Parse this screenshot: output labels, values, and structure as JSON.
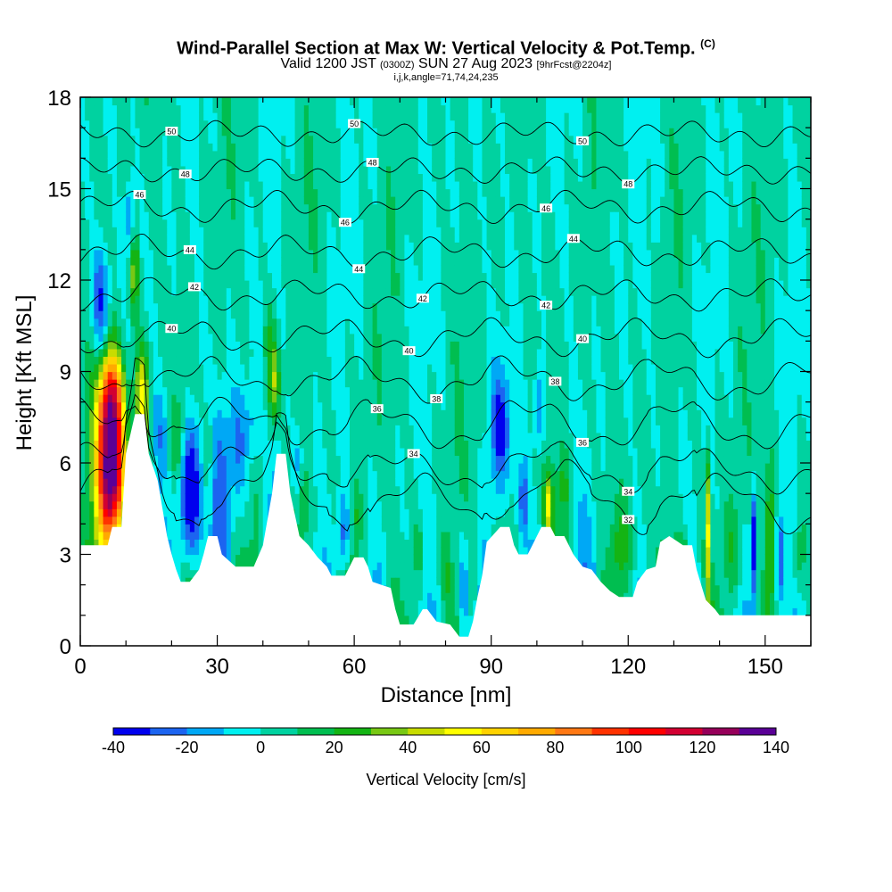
{
  "title": {
    "main": "Wind-Parallel Section at Max W: Vertical Velocity & Pot.Temp.",
    "copyright": "(C)",
    "valid_prefix": "Valid 1200 JST",
    "valid_utc": "(0300Z)",
    "valid_date": "SUN 27 Aug 2023",
    "forecast": "[9hrFcst@2204z]",
    "indices": "i,j,k,angle=71,74,24,235"
  },
  "chart_data": {
    "type": "heatmap",
    "xlabel": "Distance [nm]",
    "ylabel": "Height [Kft MSL]",
    "xlim": [
      0,
      160
    ],
    "ylim": [
      0,
      18
    ],
    "x_ticks": [
      0,
      30,
      60,
      90,
      120,
      150
    ],
    "y_ticks": [
      0,
      3,
      6,
      9,
      12,
      15,
      18
    ],
    "colorbar": {
      "label": "Vertical Velocity [cm/s]",
      "ticks": [
        -40,
        -20,
        0,
        20,
        40,
        60,
        80,
        100,
        120,
        140
      ],
      "bounds": [
        -40,
        -30,
        -20,
        -10,
        0,
        10,
        20,
        30,
        40,
        50,
        60,
        70,
        80,
        90,
        100,
        110,
        120,
        130,
        140
      ],
      "colors": [
        "#0000ee",
        "#1c64f0",
        "#00a8f5",
        "#00f0f0",
        "#00d2a0",
        "#00be50",
        "#14b414",
        "#78c814",
        "#c8dc00",
        "#ffff00",
        "#ffd200",
        "#ffaa00",
        "#ff7814",
        "#ff3200",
        "#ff0000",
        "#d20032",
        "#96005a",
        "#5a0096"
      ]
    },
    "terrain_top": [
      [
        0,
        3.3
      ],
      [
        6,
        3.3
      ],
      [
        7,
        3.9
      ],
      [
        9,
        3.9
      ],
      [
        10,
        6.3
      ],
      [
        12,
        7.6
      ],
      [
        14,
        7.6
      ],
      [
        15,
        6.3
      ],
      [
        17,
        5.4
      ],
      [
        19,
        3.6
      ],
      [
        20,
        3.0
      ],
      [
        21,
        2.5
      ],
      [
        22,
        2.1
      ],
      [
        24,
        2.1
      ],
      [
        26,
        2.5
      ],
      [
        27,
        3.0
      ],
      [
        28,
        3.6
      ],
      [
        30,
        3.6
      ],
      [
        31,
        3.0
      ],
      [
        34,
        2.6
      ],
      [
        38,
        2.6
      ],
      [
        40,
        3.3
      ],
      [
        42,
        5.0
      ],
      [
        43,
        6.3
      ],
      [
        45,
        6.3
      ],
      [
        46,
        5.0
      ],
      [
        48,
        3.6
      ],
      [
        50,
        3.3
      ],
      [
        52,
        2.9
      ],
      [
        54,
        2.6
      ],
      [
        55,
        2.3
      ],
      [
        58,
        2.3
      ],
      [
        60,
        2.9
      ],
      [
        62,
        2.9
      ],
      [
        63,
        2.6
      ],
      [
        64,
        2.1
      ],
      [
        66,
        2.0
      ],
      [
        68,
        1.9
      ],
      [
        69,
        1.2
      ],
      [
        70,
        0.7
      ],
      [
        73,
        0.7
      ],
      [
        75,
        1.2
      ],
      [
        76,
        1.2
      ],
      [
        78,
        0.8
      ],
      [
        81,
        0.7
      ],
      [
        83,
        0.3
      ],
      [
        85,
        0.3
      ],
      [
        86,
        0.8
      ],
      [
        87,
        1.6
      ],
      [
        88,
        2.3
      ],
      [
        89,
        3.4
      ],
      [
        92,
        3.9
      ],
      [
        94,
        3.9
      ],
      [
        95,
        3.3
      ],
      [
        96,
        3.0
      ],
      [
        98,
        3.0
      ],
      [
        99,
        3.3
      ],
      [
        101,
        3.9
      ],
      [
        103,
        3.9
      ],
      [
        104,
        3.6
      ],
      [
        106,
        3.6
      ],
      [
        107,
        3.3
      ],
      [
        108,
        3.0
      ],
      [
        110,
        2.6
      ],
      [
        112,
        2.5
      ],
      [
        114,
        2.1
      ],
      [
        116,
        1.8
      ],
      [
        118,
        1.6
      ],
      [
        121,
        1.6
      ],
      [
        122,
        2.1
      ],
      [
        124,
        2.5
      ],
      [
        126,
        2.6
      ],
      [
        127,
        3.4
      ],
      [
        129,
        3.6
      ],
      [
        131,
        3.4
      ],
      [
        132,
        3.3
      ],
      [
        134,
        3.3
      ],
      [
        135,
        2.5
      ],
      [
        136,
        2.0
      ],
      [
        137,
        1.5
      ],
      [
        139,
        1.2
      ],
      [
        140,
        1.0
      ],
      [
        160,
        1.0
      ]
    ],
    "w_cells": [
      {
        "x": 6.8,
        "z": 5.8,
        "sx": 2.2,
        "sz": 2.0,
        "w": 150
      },
      {
        "x": 6.5,
        "z": 8.4,
        "sx": 1.8,
        "sz": 1.0,
        "w": 55
      },
      {
        "x": 13.5,
        "z": 8.2,
        "sx": 1.1,
        "sz": 1.2,
        "w": 45
      },
      {
        "x": 11.8,
        "z": 12.4,
        "sx": 0.7,
        "sz": 1.2,
        "w": 35
      },
      {
        "x": 4.5,
        "z": 11.2,
        "sx": 1.4,
        "sz": 1.4,
        "w": -40
      },
      {
        "x": 11.0,
        "z": 14.0,
        "sx": 0.8,
        "sz": 0.8,
        "w": -30
      },
      {
        "x": 24.0,
        "z": 5.0,
        "sx": 2.0,
        "sz": 1.6,
        "w": -50
      },
      {
        "x": 17.5,
        "z": 7.0,
        "sx": 1.5,
        "sz": 1.2,
        "w": -20
      },
      {
        "x": 21.5,
        "z": 6.6,
        "sx": 1.2,
        "sz": 1.0,
        "w": 20
      },
      {
        "x": 28.0,
        "z": 6.3,
        "sx": 1.0,
        "sz": 1.2,
        "w": 18
      },
      {
        "x": 31.0,
        "z": 5.8,
        "sx": 1.6,
        "sz": 1.6,
        "w": -20
      },
      {
        "x": 35.0,
        "z": 6.6,
        "sx": 1.5,
        "sz": 1.5,
        "w": -22
      },
      {
        "x": 38.0,
        "z": 7.4,
        "sx": 1.2,
        "sz": 1.0,
        "w": -15
      },
      {
        "x": 42.5,
        "z": 8.6,
        "sx": 0.9,
        "sz": 0.9,
        "w": 35
      },
      {
        "x": 41.5,
        "z": 10.0,
        "sx": 1.0,
        "sz": 1.0,
        "w": 15
      },
      {
        "x": 47.5,
        "z": 6.0,
        "sx": 1.0,
        "sz": 0.8,
        "w": -15
      },
      {
        "x": 49.0,
        "z": 4.8,
        "sx": 1.0,
        "sz": 0.8,
        "w": 14
      },
      {
        "x": 57.5,
        "z": 3.6,
        "sx": 1.0,
        "sz": 1.0,
        "w": -30
      },
      {
        "x": 60.5,
        "z": 4.2,
        "sx": 0.7,
        "sz": 0.8,
        "w": 15
      },
      {
        "x": 74.0,
        "z": 3.2,
        "sx": 0.8,
        "sz": 0.8,
        "w": 15
      },
      {
        "x": 84.0,
        "z": 2.0,
        "sx": 0.7,
        "sz": 1.3,
        "w": -25
      },
      {
        "x": 80.0,
        "z": 2.5,
        "sx": 0.8,
        "sz": 0.8,
        "w": 15
      },
      {
        "x": 92.0,
        "z": 7.2,
        "sx": 1.6,
        "sz": 1.3,
        "w": -32
      },
      {
        "x": 97.0,
        "z": 4.8,
        "sx": 0.8,
        "sz": 1.0,
        "w": -30
      },
      {
        "x": 100.5,
        "z": 7.8,
        "sx": 0.9,
        "sz": 1.0,
        "w": -28
      },
      {
        "x": 102.5,
        "z": 4.6,
        "sx": 0.7,
        "sz": 0.8,
        "w": 40
      },
      {
        "x": 106.0,
        "z": 5.2,
        "sx": 1.0,
        "sz": 0.8,
        "w": 18
      },
      {
        "x": 118.5,
        "z": 3.3,
        "sx": 1.6,
        "sz": 0.8,
        "w": 18
      },
      {
        "x": 132.0,
        "z": 2.3,
        "sx": 1.2,
        "sz": 1.0,
        "w": 45
      },
      {
        "x": 137.5,
        "z": 4.0,
        "sx": 0.4,
        "sz": 1.6,
        "w": 45
      },
      {
        "x": 143.0,
        "z": 3.2,
        "sx": 1.2,
        "sz": 1.2,
        "w": 18
      },
      {
        "x": 147.5,
        "z": 3.4,
        "sx": 0.45,
        "sz": 1.3,
        "w": -45
      },
      {
        "x": 151.0,
        "z": 3.6,
        "sx": 0.4,
        "sz": 1.7,
        "w": 55
      },
      {
        "x": 153.5,
        "z": 2.9,
        "sx": 0.6,
        "sz": 1.0,
        "w": -30
      },
      {
        "x": 157.5,
        "z": 3.0,
        "sx": 1.0,
        "sz": 1.0,
        "w": 20
      },
      {
        "x": 114.0,
        "z": 14.0,
        "sx": 0.4,
        "sz": 1.0,
        "w": -12
      },
      {
        "x": 126.0,
        "z": 13.8,
        "sx": 0.4,
        "sz": 1.0,
        "w": -12
      }
    ],
    "theta_contours": [
      {
        "label": "32",
        "z0": 4.6,
        "amp": 0.8,
        "label_x": [
          120
        ]
      },
      {
        "label": "34",
        "z0": 5.7,
        "amp": 0.5,
        "label_x": [
          73,
          120
        ]
      },
      {
        "label": "36",
        "z0": 7.2,
        "amp": 0.6,
        "label_x": [
          65,
          110
        ]
      },
      {
        "label": "38",
        "z0": 8.7,
        "amp": 0.5,
        "label_x": [
          78,
          104
        ]
      },
      {
        "label": "40",
        "z0": 10.1,
        "amp": 0.4,
        "label_x": [
          20,
          72,
          110
        ]
      },
      {
        "label": "42",
        "z0": 11.5,
        "amp": 0.3,
        "label_x": [
          25,
          75,
          102
        ]
      },
      {
        "label": "44",
        "z0": 12.9,
        "amp": 0.3,
        "label_x": [
          24,
          61,
          108
        ]
      },
      {
        "label": "46",
        "z0": 14.4,
        "amp": 0.3,
        "label_x": [
          13,
          58,
          102
        ]
      },
      {
        "label": "48",
        "z0": 15.6,
        "amp": 0.2,
        "label_x": [
          23,
          64,
          120
        ]
      },
      {
        "label": "50",
        "z0": 16.8,
        "amp": 0.2,
        "label_x": [
          20,
          60,
          110
        ]
      }
    ]
  }
}
